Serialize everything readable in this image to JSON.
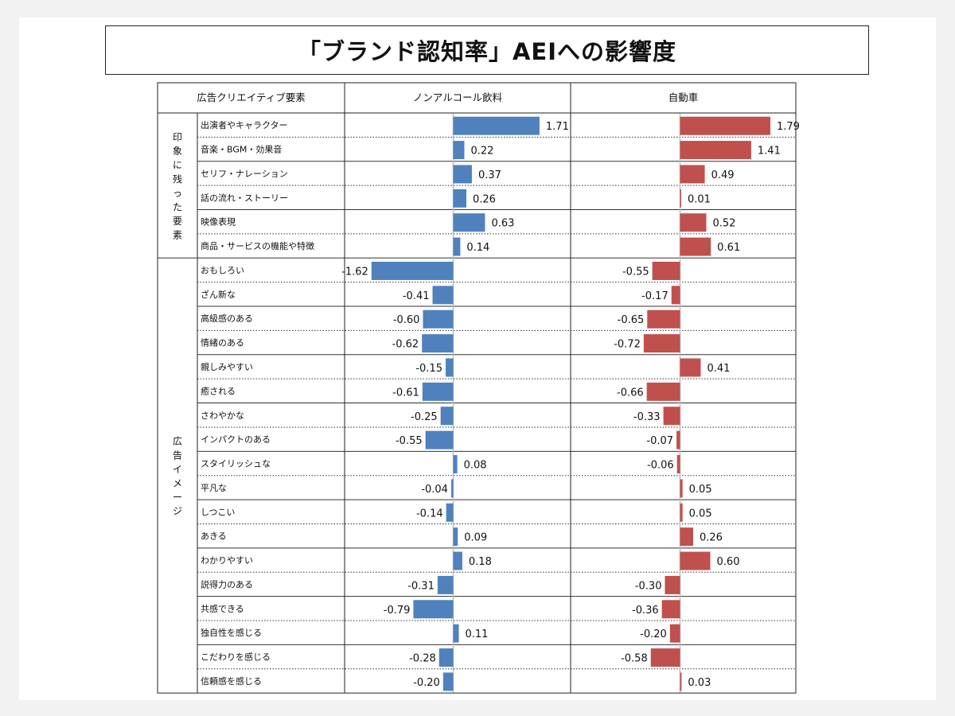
{
  "title": "「ブランド認知率」AEIへの影響度",
  "headers": {
    "element": "広告クリエイティブ要素",
    "series": [
      "ノンアルコール飲料",
      "自動車"
    ]
  },
  "groups": [
    {
      "label": "印象に残った要素",
      "count": 6
    },
    {
      "label": "広告イメージ",
      "count": 18
    }
  ],
  "colors": {
    "series1": "#4f81bd",
    "series2": "#c0504d"
  },
  "chart_data": {
    "type": "bar",
    "orientation": "horizontal",
    "xlim": [
      -1.8,
      1.8
    ],
    "categories": [
      "出演者やキャラクター",
      "音楽・BGM・効果音",
      "セリフ・ナレーション",
      "話の流れ・ストーリー",
      "映像表現",
      "商品・サービスの機能や特徴",
      "おもしろい",
      "ざん新な",
      "高級感のある",
      "情緒のある",
      "親しみやすい",
      "癒される",
      "さわやかな",
      "インパクトのある",
      "スタイリッシュな",
      "平凡な",
      "しつこい",
      "あきる",
      "わかりやすい",
      "説得力のある",
      "共感できる",
      "独自性を感じる",
      "こだわりを感じる",
      "信頼感を感じる"
    ],
    "series": [
      {
        "name": "ノンアルコール飲料",
        "values": [
          1.71,
          0.22,
          0.37,
          0.26,
          0.63,
          0.14,
          -1.62,
          -0.41,
          -0.6,
          -0.62,
          -0.15,
          -0.61,
          -0.25,
          -0.55,
          0.08,
          -0.04,
          -0.14,
          0.09,
          0.18,
          -0.31,
          -0.79,
          0.11,
          -0.28,
          -0.2
        ],
        "labels": [
          "1.71",
          "0.22",
          "0.37",
          "0.26",
          "0.63",
          "0.14",
          "-1.62",
          "-0.41",
          "-0.60",
          "-0.62",
          "-0.15",
          "-0.61",
          "-0.25",
          "-0.55",
          "0.08",
          "-0.04",
          "-0.14",
          "0.09",
          "0.18",
          "-0.31",
          "-0.79",
          "0.11",
          "-0.28",
          "-0.20"
        ]
      },
      {
        "name": "自動車",
        "values": [
          1.79,
          1.41,
          0.49,
          0.01,
          0.52,
          0.61,
          -0.55,
          -0.17,
          -0.65,
          -0.72,
          0.41,
          -0.66,
          -0.33,
          -0.07,
          -0.06,
          0.05,
          0.05,
          0.26,
          0.6,
          -0.3,
          -0.36,
          -0.2,
          -0.58,
          0.03
        ],
        "labels": [
          "1.79",
          "1.41",
          "0.49",
          "0.01",
          "0.52",
          "0.61",
          "-0.55",
          "-0.17",
          "-0.65",
          "-0.72",
          "0.41",
          "-0.66",
          "-0.33",
          "-0.07",
          "-0.06",
          "0.05",
          "0.05",
          "0.26",
          "0.60",
          "-0.30",
          "-0.36",
          "-0.20",
          "-0.58",
          "0.03"
        ]
      }
    ]
  }
}
